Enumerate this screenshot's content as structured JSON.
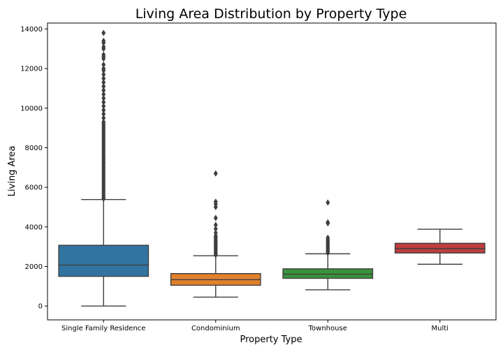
{
  "chart_data": {
    "type": "box",
    "title": "Living Area Distribution by Property Type",
    "xlabel": "Property Type",
    "ylabel": "Living Area",
    "ylim": [
      -700,
      14300
    ],
    "yticks": [
      0,
      2000,
      4000,
      6000,
      8000,
      10000,
      12000,
      14000
    ],
    "categories": [
      "Single Family Residence",
      "Condominium",
      "Townhouse",
      "Multi"
    ],
    "colors": [
      "#3274a1",
      "#e1812c",
      "#3a923a",
      "#c03d3e"
    ],
    "boxes": [
      {
        "category": "Single Family Residence",
        "whisker_low": 0,
        "q1": 1500,
        "median": 2070,
        "q3": 3070,
        "whisker_high": 5380,
        "outliers": [
          5420,
          5500,
          5600,
          5700,
          5800,
          5900,
          6000,
          6100,
          6200,
          6300,
          6400,
          6500,
          6600,
          6700,
          6800,
          6900,
          7000,
          7100,
          7200,
          7300,
          7400,
          7500,
          7600,
          7700,
          7800,
          7900,
          8000,
          8100,
          8200,
          8300,
          8400,
          8500,
          8600,
          8700,
          8800,
          8900,
          9000,
          9100,
          9200,
          9300,
          9500,
          9700,
          9900,
          10100,
          10300,
          10500,
          10700,
          10900,
          11100,
          11300,
          11500,
          11700,
          11900,
          12000,
          12200,
          12500,
          12600,
          12700,
          13000,
          13100,
          13300,
          13400,
          13800
        ]
      },
      {
        "category": "Condominium",
        "whisker_low": 450,
        "q1": 1050,
        "median": 1330,
        "q3": 1640,
        "whisker_high": 2540,
        "outliers": [
          2580,
          2650,
          2720,
          2800,
          2880,
          2950,
          3020,
          3100,
          3180,
          3250,
          3320,
          3400,
          3480,
          3550,
          3700,
          3900,
          4100,
          4450,
          5000,
          5150,
          5270,
          6700
        ]
      },
      {
        "category": "Townhouse",
        "whisker_low": 820,
        "q1": 1400,
        "median": 1610,
        "q3": 1880,
        "whisker_high": 2640,
        "outliers": [
          2680,
          2750,
          2820,
          2900,
          2980,
          3050,
          3120,
          3200,
          3280,
          3350,
          3450,
          4180,
          4230,
          5230
        ]
      },
      {
        "category": "Multi",
        "whisker_low": 2110,
        "q1": 2680,
        "median": 2900,
        "q3": 3170,
        "whisker_high": 3880,
        "outliers": []
      }
    ]
  }
}
